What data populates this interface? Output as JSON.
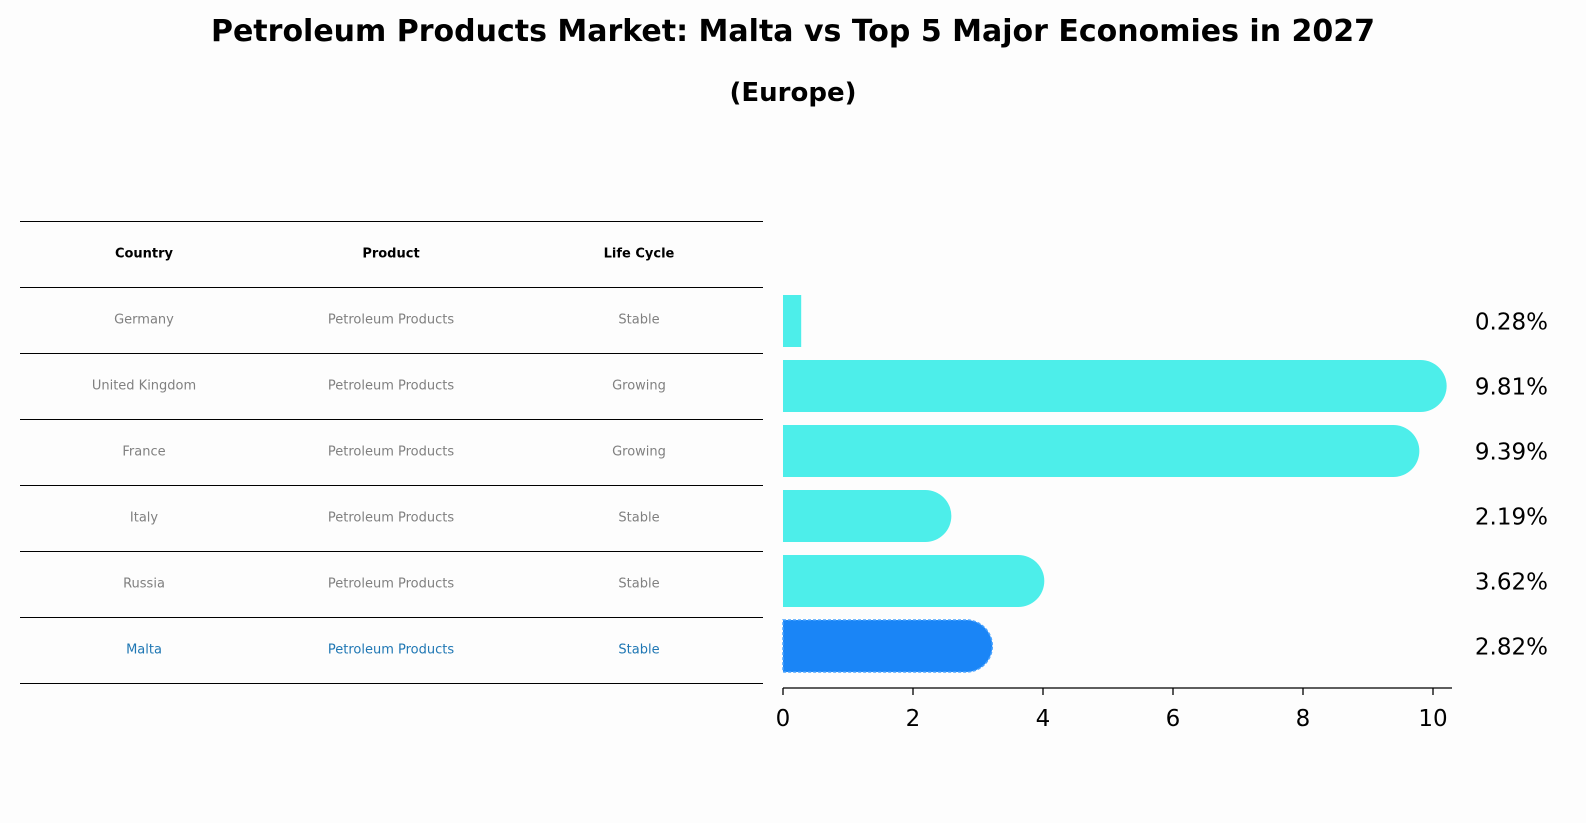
{
  "chart_data": {
    "type": "bar",
    "orientation": "horizontal",
    "title": "Petroleum Products Market: Malta vs Top 5 Major Economies in 2027",
    "subtitle": "(Europe)",
    "categories": [
      "Germany",
      "United Kingdom",
      "France",
      "Italy",
      "Russia",
      "Malta"
    ],
    "values": [
      0.28,
      9.81,
      9.39,
      2.19,
      3.62,
      2.82
    ],
    "value_labels": [
      "0.28%",
      "9.81%",
      "9.39%",
      "2.19%",
      "3.62%",
      "2.82%"
    ],
    "highlight": "Malta",
    "xlim": [
      0,
      10.3
    ],
    "xticks": [
      0,
      2,
      4,
      6,
      8,
      10
    ],
    "xtick_labels": [
      "0",
      "2",
      "4",
      "6",
      "8",
      "10"
    ],
    "colors": {
      "default": "#4deeea",
      "highlight": "#1a85f6"
    }
  },
  "table": {
    "headers": [
      "Country",
      "Product",
      "Life Cycle"
    ],
    "rows": [
      [
        "Germany",
        "Petroleum Products",
        "Stable"
      ],
      [
        "United Kingdom",
        "Petroleum Products",
        "Growing"
      ],
      [
        "France",
        "Petroleum Products",
        "Growing"
      ],
      [
        "Italy",
        "Petroleum Products",
        "Stable"
      ],
      [
        "Russia",
        "Petroleum Products",
        "Stable"
      ],
      [
        "Malta",
        "Petroleum Products",
        "Stable"
      ]
    ],
    "text_color": "#808080",
    "highlight_color": "#1f77b4",
    "highlight_row": 5
  }
}
